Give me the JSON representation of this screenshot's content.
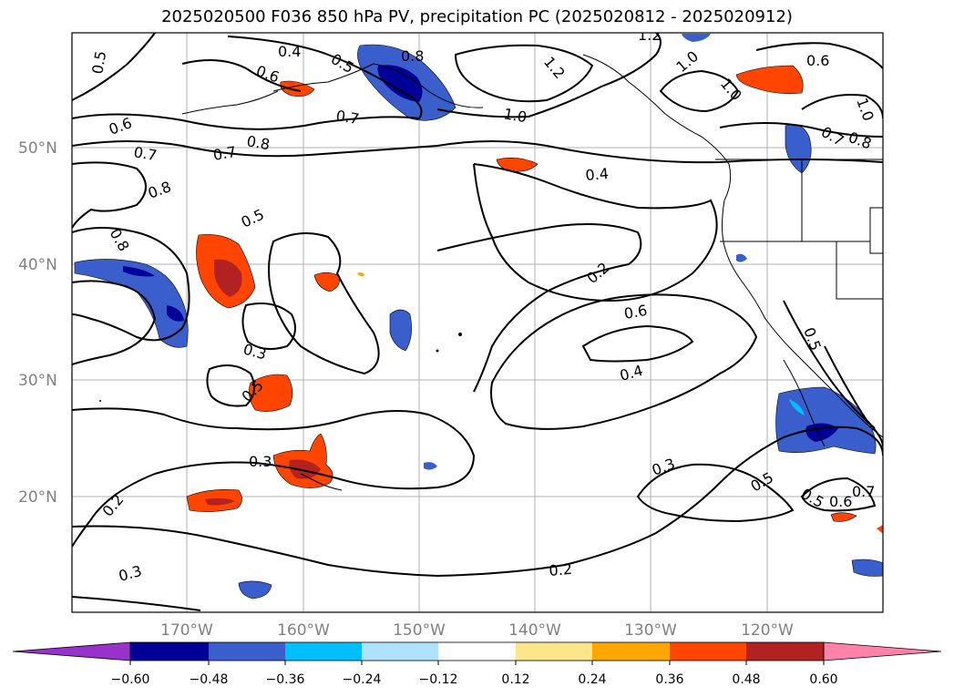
{
  "title": "2025020500 F036 850 hPa PV, precipitation PC (2025020812 - 2025020912)",
  "lat_labels": [
    "50°N",
    "40°N",
    "30°N",
    "20°N"
  ],
  "lon_labels": [
    "170°W",
    "160°W",
    "150°W",
    "140°W",
    "130°W",
    "120°W"
  ],
  "contour_labels": [
    {
      "text": "0.5",
      "rot": -80
    },
    {
      "text": "0.4",
      "rot": 0
    },
    {
      "text": "0.5",
      "rot": 30
    },
    {
      "text": "0.8",
      "rot": 0
    },
    {
      "text": "1.2",
      "rot": 50
    },
    {
      "text": "1.2",
      "rot": 0
    },
    {
      "text": "1.0",
      "rot": -40
    },
    {
      "text": "1.0",
      "rot": 50
    },
    {
      "text": "0.6",
      "rot": 0
    },
    {
      "text": "1.0",
      "rot": 70
    },
    {
      "text": "0.6",
      "rot": 20
    },
    {
      "text": "0.7",
      "rot": 10
    },
    {
      "text": "1.0",
      "rot": 10
    },
    {
      "text": "0.6",
      "rot": -20
    },
    {
      "text": "0.8",
      "rot": 10
    },
    {
      "text": "0.7",
      "rot": 30
    },
    {
      "text": "0.8",
      "rot": 20
    },
    {
      "text": "0.7",
      "rot": 10
    },
    {
      "text": "0.7",
      "rot": -10
    },
    {
      "text": "0.8",
      "rot": -20
    },
    {
      "text": "0.4",
      "rot": -5
    },
    {
      "text": "0.8",
      "rot": 60
    },
    {
      "text": "0.5",
      "rot": -25
    },
    {
      "text": "0.2",
      "rot": -40
    },
    {
      "text": "0.6",
      "rot": -10
    },
    {
      "text": "0.5",
      "rot": 70
    },
    {
      "text": "0.3",
      "rot": 15
    },
    {
      "text": "0.4",
      "rot": -15
    },
    {
      "text": "0.5",
      "rot": -45
    },
    {
      "text": "0.3",
      "rot": -20
    },
    {
      "text": "0.3",
      "rot": 0
    },
    {
      "text": "0.5",
      "rot": -30
    },
    {
      "text": "0.5",
      "rot": 30
    },
    {
      "text": "0.6",
      "rot": 0
    },
    {
      "text": "0.7",
      "rot": 0
    },
    {
      "text": "0.2",
      "rot": -50
    },
    {
      "text": "0.3",
      "rot": -15
    },
    {
      "text": "0.2",
      "rot": -5
    }
  ],
  "colorbar": {
    "ticks": [
      "−0.60",
      "−0.48",
      "−0.36",
      "−0.24",
      "−0.12",
      "0.12",
      "0.24",
      "0.36",
      "0.48",
      "0.60"
    ],
    "colors": [
      "#9932cc",
      "#000099",
      "#3a5fcd",
      "#00bfff",
      "#b0e2ff",
      "#ffffff",
      "#fde68a",
      "#ffa500",
      "#ff4500",
      "#b22222",
      "#ff82ab"
    ]
  },
  "colors": {
    "pos_light": "#fde68a",
    "pos_mid": "#ffa500",
    "pos_strong": "#ff4500",
    "pos_max": "#b22222",
    "neg_light": "#b0e2ff",
    "neg_mid": "#00bfff",
    "neg_strong": "#3a5fcd",
    "neg_max": "#000099"
  }
}
